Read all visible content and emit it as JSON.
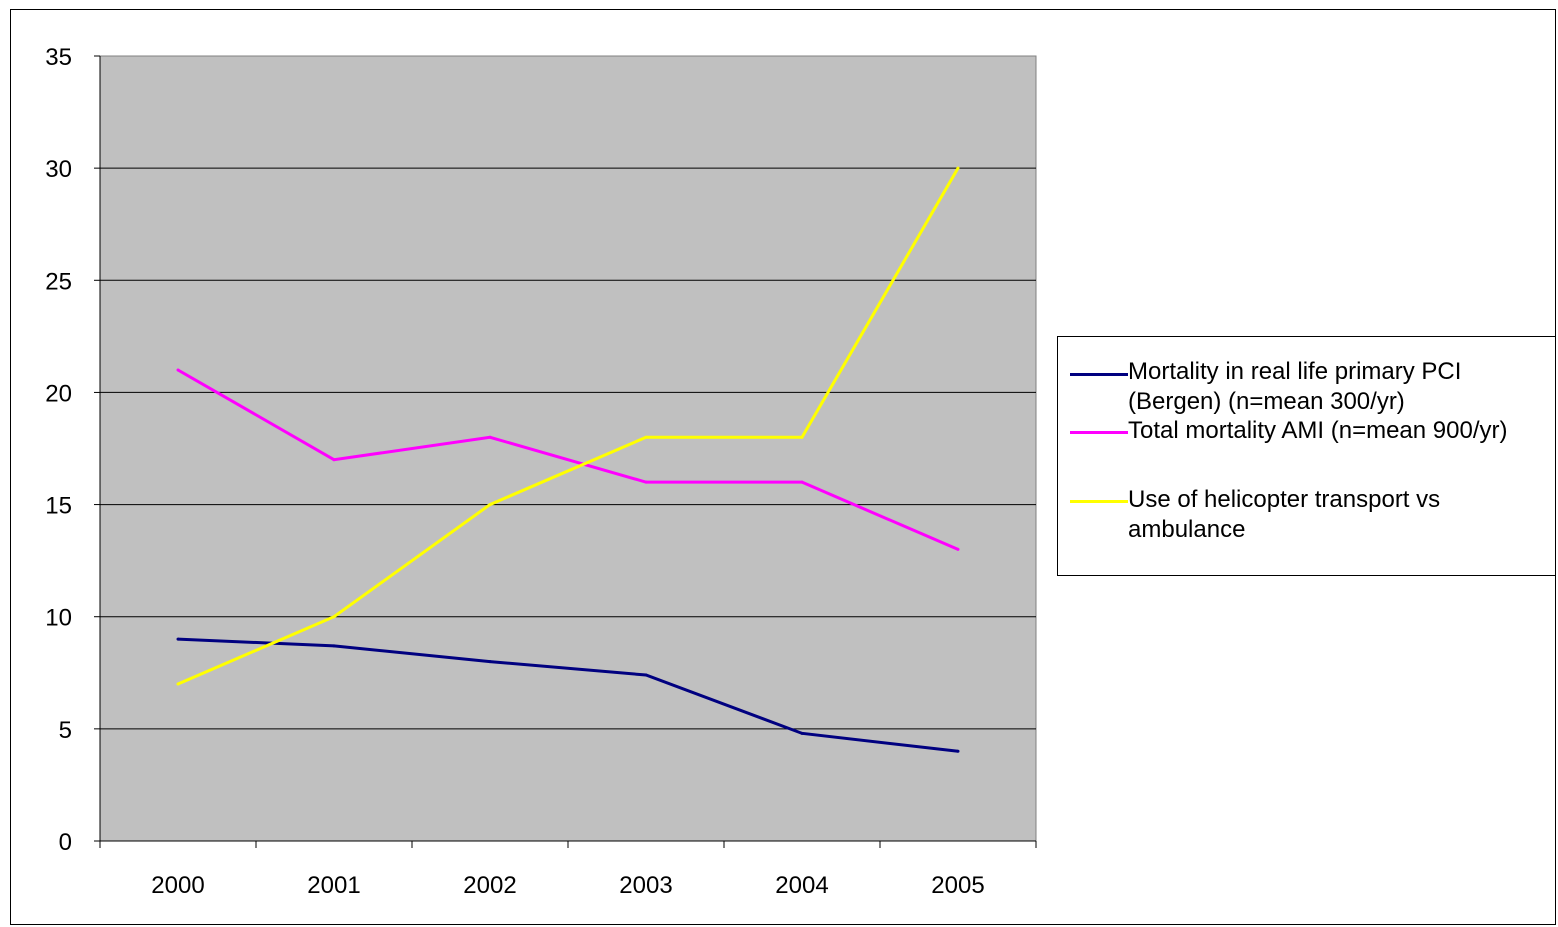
{
  "chart_data": {
    "type": "line",
    "title": "",
    "xlabel": "",
    "ylabel": "",
    "categories": [
      "2000",
      "2001",
      "2002",
      "2003",
      "2004",
      "2005"
    ],
    "ylim": [
      0,
      35
    ],
    "yticks": [
      "0",
      "5",
      "10",
      "15",
      "20",
      "25",
      "30",
      "35"
    ],
    "grid": true,
    "plot_background": "#c0c0c0",
    "legend_position": "right",
    "series": [
      {
        "name": "Mortality in real life primary PCI (Bergen) (n=mean 300/yr)",
        "color": "#000080",
        "values": [
          9,
          8.7,
          8,
          7.4,
          4.8,
          4
        ]
      },
      {
        "name": "Total mortality AMI (n=mean 900/yr)",
        "color": "#ff00ff",
        "values": [
          21,
          17,
          18,
          16,
          16,
          13
        ]
      },
      {
        "name": "Use of helicopter transport vs ambulance",
        "color": "#ffff00",
        "values": [
          7,
          10,
          15,
          18,
          18,
          30
        ]
      }
    ]
  }
}
